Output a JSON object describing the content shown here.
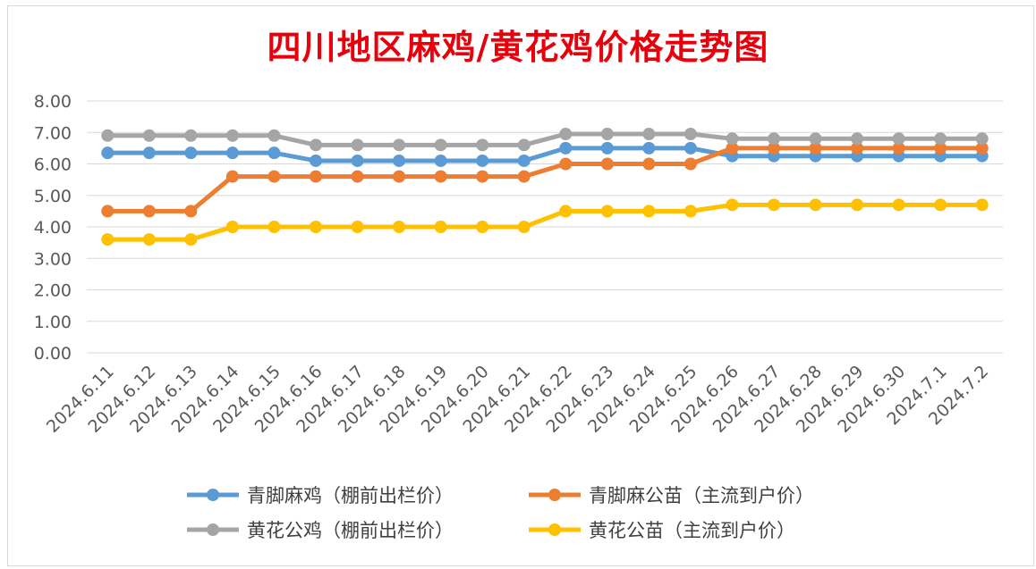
{
  "chart_data": {
    "type": "line",
    "title": "四川地区麻鸡/黄花鸡价格走势图",
    "categories": [
      "2024.6.11",
      "2024.6.12",
      "2024.6.13",
      "2024.6.14",
      "2024.6.15",
      "2024.6.16",
      "2024.6.17",
      "2024.6.18",
      "2024.6.19",
      "2024.6.20",
      "2024.6.21",
      "2024.6.22",
      "2024.6.23",
      "2024.6.24",
      "2024.6.25",
      "2024.6.26",
      "2024.6.27",
      "2024.6.28",
      "2024.6.29",
      "2024.6.30",
      "2024.7.1",
      "2024.7.2"
    ],
    "ylim": [
      0,
      8
    ],
    "yticks": [
      "0.00",
      "1.00",
      "2.00",
      "3.00",
      "4.00",
      "5.00",
      "6.00",
      "7.00",
      "8.00"
    ],
    "grid": true,
    "legend_position": "bottom",
    "series": [
      {
        "name": "青脚麻鸡（棚前出栏价）",
        "color": "#5b9bd5",
        "values": [
          6.35,
          6.35,
          6.35,
          6.35,
          6.35,
          6.1,
          6.1,
          6.1,
          6.1,
          6.1,
          6.1,
          6.5,
          6.5,
          6.5,
          6.5,
          6.25,
          6.25,
          6.25,
          6.25,
          6.25,
          6.25,
          6.25
        ]
      },
      {
        "name": "青脚麻公苗（主流到户价）",
        "color": "#ed7d31",
        "values": [
          4.5,
          4.5,
          4.5,
          5.6,
          5.6,
          5.6,
          5.6,
          5.6,
          5.6,
          5.6,
          5.6,
          6.0,
          6.0,
          6.0,
          6.0,
          6.5,
          6.5,
          6.5,
          6.5,
          6.5,
          6.5,
          6.5
        ]
      },
      {
        "name": "黄花公鸡（棚前出栏价）",
        "color": "#a5a5a5",
        "values": [
          6.9,
          6.9,
          6.9,
          6.9,
          6.9,
          6.6,
          6.6,
          6.6,
          6.6,
          6.6,
          6.6,
          6.95,
          6.95,
          6.95,
          6.95,
          6.8,
          6.8,
          6.8,
          6.8,
          6.8,
          6.8,
          6.8
        ]
      },
      {
        "name": "黄花公苗（主流到户价）",
        "color": "#ffc000",
        "values": [
          3.6,
          3.6,
          3.6,
          4.0,
          4.0,
          4.0,
          4.0,
          4.0,
          4.0,
          4.0,
          4.0,
          4.5,
          4.5,
          4.5,
          4.5,
          4.7,
          4.7,
          4.7,
          4.7,
          4.7,
          4.7,
          4.7
        ]
      }
    ]
  }
}
